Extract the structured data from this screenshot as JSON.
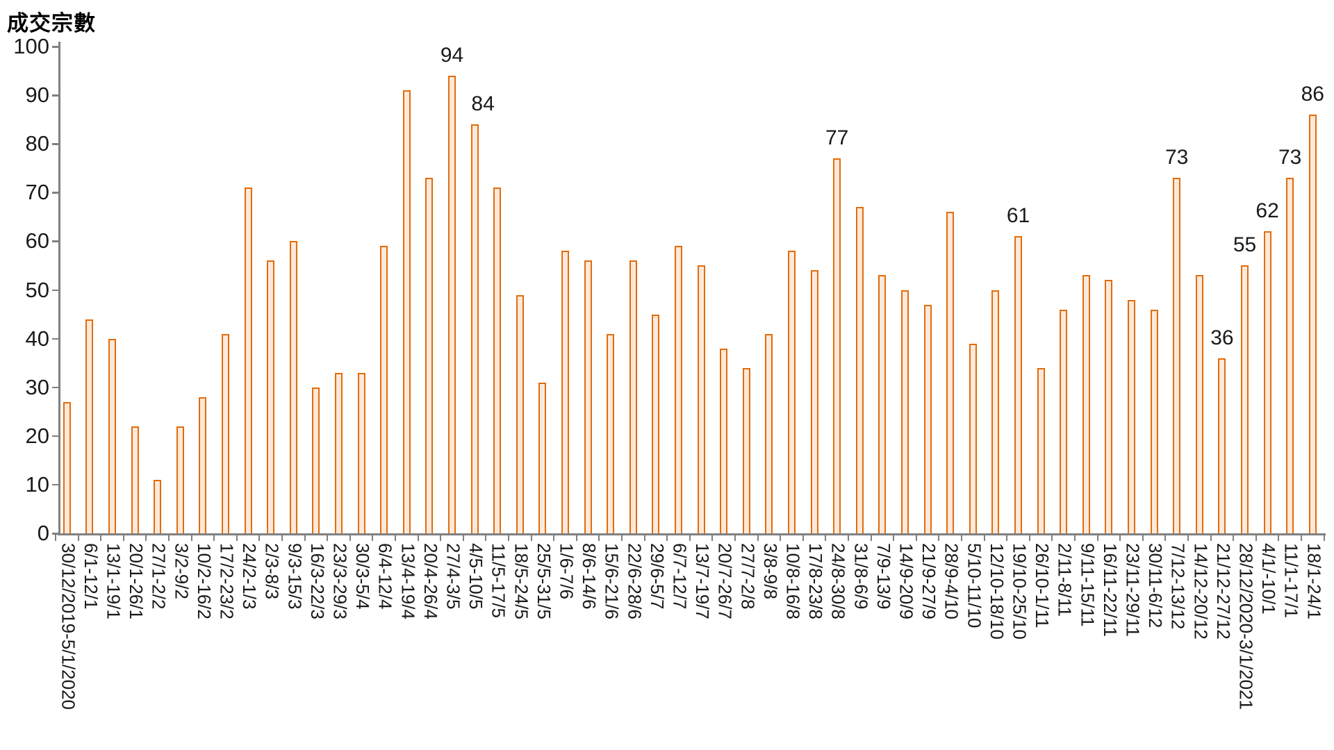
{
  "title": "成交宗數",
  "chart_data": {
    "type": "bar",
    "title": "成交宗數",
    "xlabel": "",
    "ylabel": "成交宗數",
    "ylim": [
      0,
      100
    ],
    "ytick_step": 10,
    "ytick_labels": [
      "0",
      "10",
      "20",
      "30",
      "40",
      "50",
      "60",
      "70",
      "80",
      "90",
      "100"
    ],
    "grid": false,
    "legend_position": "none",
    "bar_fill_color": "#FCE9DB",
    "bar_stroke_color": "#E36C09",
    "axis_color": "#808080",
    "text_color": "#1A1A1A",
    "categories": [
      "30/12/2019-5/1/2020",
      "6/1-12/1",
      "13/1-19/1",
      "20/1-26/1",
      "27/1-2/2",
      "3/2-9/2",
      "10/2-16/2",
      "17/2-23/2",
      "24/2-1/3",
      "2/3-8/3",
      "9/3-15/3",
      "16/3-22/3",
      "23/3-29/3",
      "30/3-5/4",
      "6/4-12/4",
      "13/4-19/4",
      "20/4-26/4",
      "27/4-3/5",
      "4/5-10/5",
      "11/5-17/5",
      "18/5-24/5",
      "25/5-31/5",
      "1/6-7/6",
      "8/6-14/6",
      "15/6-21/6",
      "22/6-28/6",
      "29/6-5/7",
      "6/7-12/7",
      "13/7-19/7",
      "20/7-26/7",
      "27/7-2/8",
      "3/8-9/8",
      "10/8-16/8",
      "17/8-23/8",
      "24/8-30/8",
      "31/8-6/9",
      "7/9-13/9",
      "14/9-20/9",
      "21/9-27/9",
      "28/9-4/10",
      "5/10-11/10",
      "12/10-18/10",
      "19/10-25/10",
      "26/10-1/11",
      "2/11-8/11",
      "9/11-15/11",
      "16/11-22/11",
      "23/11-29/11",
      "30/11-6/12",
      "7/12-13/12",
      "14/12-20/12",
      "21/12-27/12",
      "28/12/2020-3/1/2021",
      "4/1/-10/1",
      "11/1-17/1",
      "18/1-24/1"
    ],
    "values": [
      27,
      44,
      40,
      22,
      11,
      22,
      28,
      41,
      71,
      56,
      60,
      30,
      33,
      33,
      59,
      91,
      73,
      94,
      84,
      71,
      49,
      31,
      58,
      56,
      41,
      56,
      45,
      59,
      55,
      38,
      34,
      41,
      58,
      54,
      77,
      67,
      53,
      50,
      47,
      66,
      39,
      50,
      61,
      34,
      46,
      53,
      52,
      48,
      46,
      73,
      53,
      36,
      55,
      62,
      73,
      86
    ],
    "annotated_indices": [
      17,
      18,
      34,
      42,
      49,
      51,
      52,
      53,
      54,
      55
    ],
    "annotation_labels": [
      "94",
      "84",
      "77",
      "61",
      "73",
      "36",
      "55",
      "62",
      "73",
      "86"
    ]
  }
}
